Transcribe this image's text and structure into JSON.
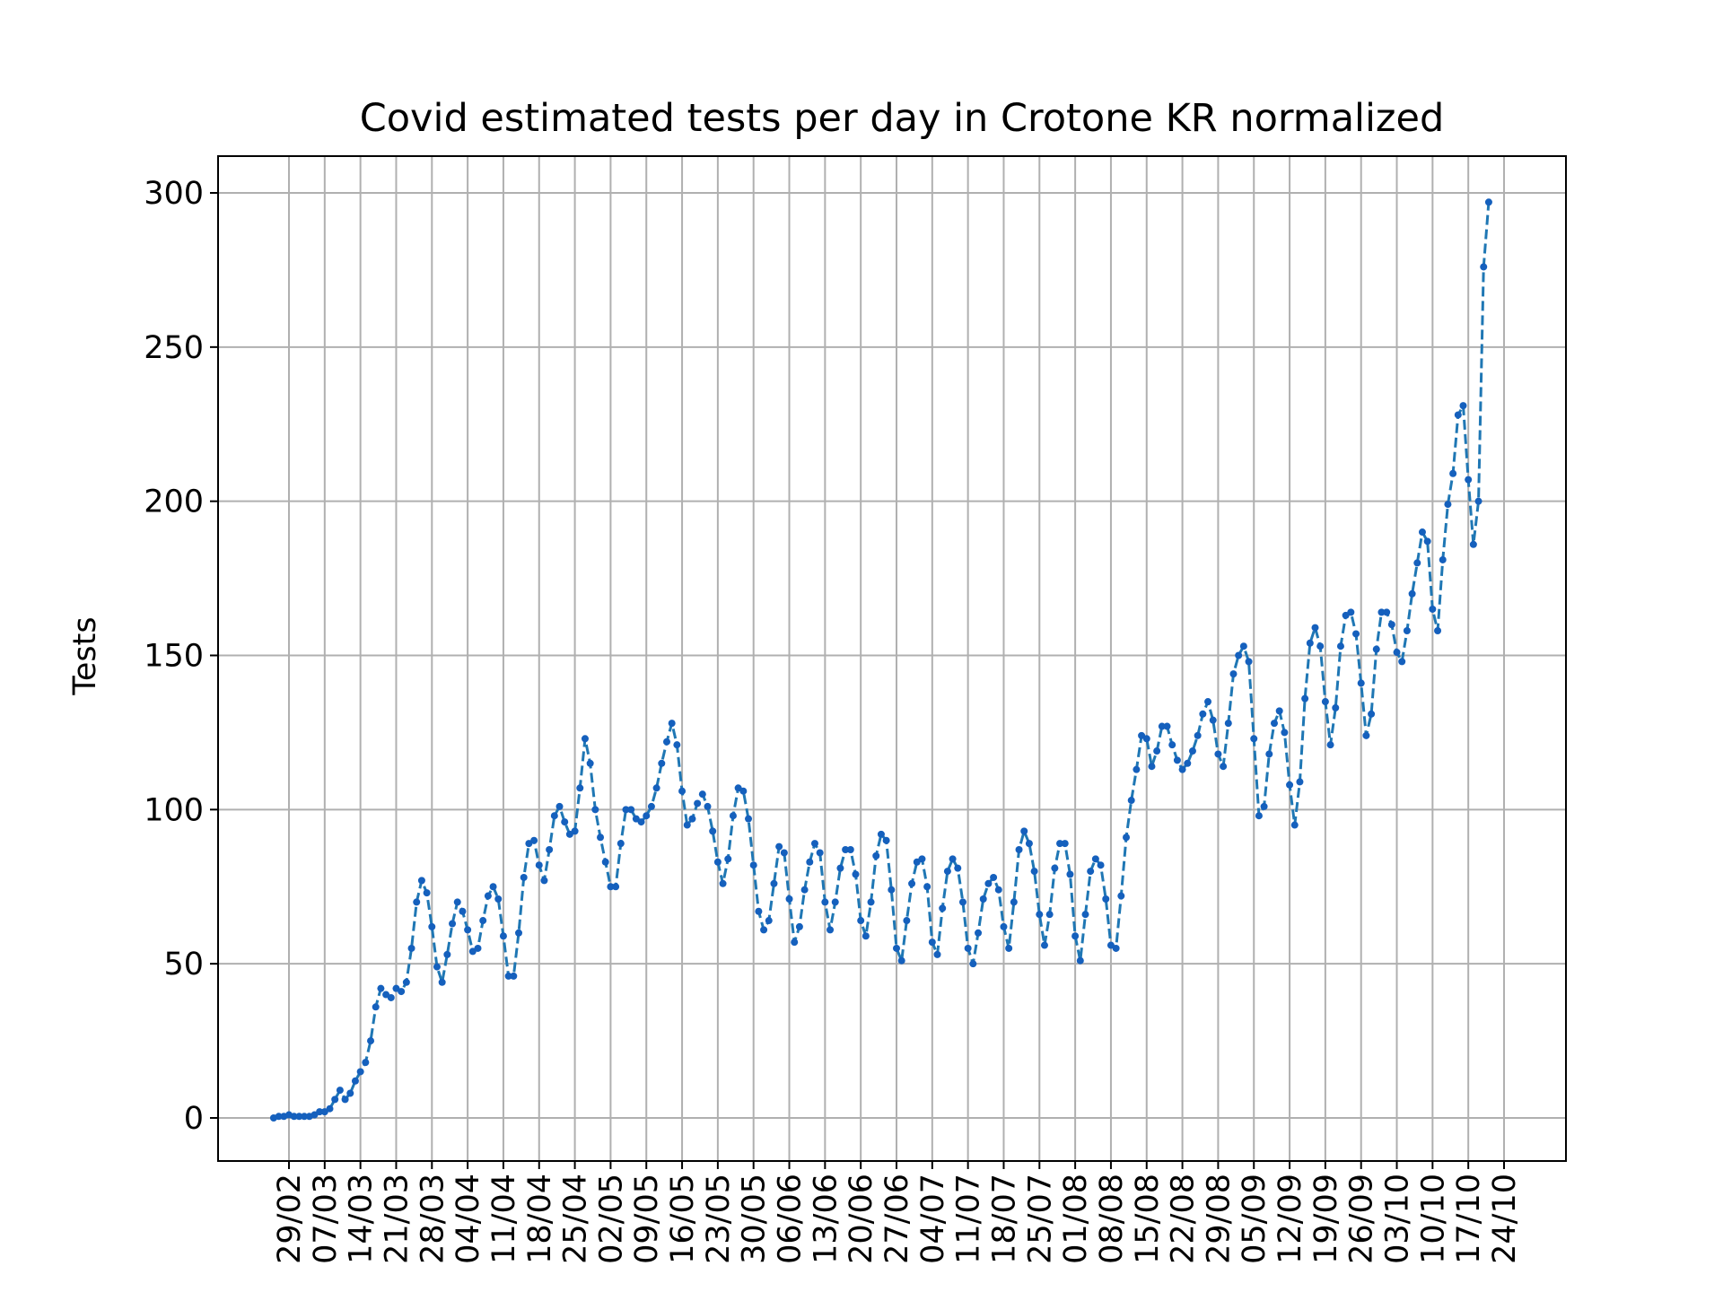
{
  "chart_data": {
    "type": "line",
    "title": "Covid estimated tests per day in Crotone KR normalized",
    "xlabel": "",
    "ylabel": "Tests",
    "ylim": [
      -14,
      312
    ],
    "yticks": [
      0,
      50,
      100,
      150,
      200,
      250,
      300
    ],
    "grid": true,
    "legend": "none",
    "line_style": "dashed",
    "marker": "dot",
    "colors": {
      "line": "#1f77b4",
      "marker": "#1560bd",
      "grid": "#b0b0b0",
      "axes": "#000000"
    },
    "xticks": [
      {
        "day": 3,
        "label": "29/02"
      },
      {
        "day": 10,
        "label": "07/03"
      },
      {
        "day": 17,
        "label": "14/03"
      },
      {
        "day": 24,
        "label": "21/03"
      },
      {
        "day": 31,
        "label": "28/03"
      },
      {
        "day": 38,
        "label": "04/04"
      },
      {
        "day": 45,
        "label": "11/04"
      },
      {
        "day": 52,
        "label": "18/04"
      },
      {
        "day": 59,
        "label": "25/04"
      },
      {
        "day": 66,
        "label": "02/05"
      },
      {
        "day": 73,
        "label": "09/05"
      },
      {
        "day": 80,
        "label": "16/05"
      },
      {
        "day": 87,
        "label": "23/05"
      },
      {
        "day": 94,
        "label": "30/05"
      },
      {
        "day": 101,
        "label": "06/06"
      },
      {
        "day": 108,
        "label": "13/06"
      },
      {
        "day": 115,
        "label": "20/06"
      },
      {
        "day": 122,
        "label": "27/06"
      },
      {
        "day": 129,
        "label": "04/07"
      },
      {
        "day": 136,
        "label": "11/07"
      },
      {
        "day": 143,
        "label": "18/07"
      },
      {
        "day": 150,
        "label": "25/07"
      },
      {
        "day": 157,
        "label": "01/08"
      },
      {
        "day": 164,
        "label": "08/08"
      },
      {
        "day": 171,
        "label": "15/08"
      },
      {
        "day": 178,
        "label": "22/08"
      },
      {
        "day": 185,
        "label": "29/08"
      },
      {
        "day": 192,
        "label": "05/09"
      },
      {
        "day": 199,
        "label": "12/09"
      },
      {
        "day": 206,
        "label": "19/09"
      },
      {
        "day": 213,
        "label": "26/09"
      },
      {
        "day": 220,
        "label": "03/10"
      },
      {
        "day": 227,
        "label": "10/10"
      },
      {
        "day": 234,
        "label": "17/10"
      },
      {
        "day": 241,
        "label": "24/10"
      }
    ],
    "values": [
      0,
      0.5,
      0.5,
      1,
      0.5,
      0.5,
      0.5,
      0.5,
      1,
      2,
      2,
      3,
      6,
      9,
      6,
      8,
      12,
      15,
      18,
      25,
      36,
      42,
      40,
      39,
      42,
      41,
      44,
      55,
      70,
      77,
      73,
      62,
      49,
      44,
      53,
      63,
      70,
      67,
      61,
      54,
      55,
      64,
      72,
      75,
      71,
      59,
      46,
      46,
      60,
      78,
      89,
      90,
      82,
      77,
      87,
      98,
      101,
      96,
      92,
      93,
      107,
      123,
      115,
      100,
      91,
      83,
      75,
      75,
      89,
      100,
      100,
      97,
      96,
      98,
      101,
      107,
      115,
      122,
      128,
      121,
      106,
      95,
      97,
      102,
      105,
      101,
      93,
      83,
      76,
      84,
      98,
      107,
      106,
      97,
      82,
      67,
      61,
      64,
      76,
      88,
      86,
      71,
      57,
      62,
      74,
      83,
      89,
      86,
      70,
      61,
      70,
      81,
      87,
      87,
      79,
      64,
      59,
      70,
      85,
      92,
      90,
      74,
      55,
      51,
      64,
      76,
      83,
      84,
      75,
      57,
      53,
      68,
      80,
      84,
      81,
      70,
      55,
      50,
      60,
      71,
      76,
      78,
      74,
      62,
      55,
      70,
      87,
      93,
      89,
      80,
      66,
      56,
      66,
      81,
      89,
      89,
      79,
      59,
      51,
      66,
      80,
      84,
      82,
      71,
      56,
      55,
      72,
      91,
      103,
      113,
      124,
      123,
      114,
      119,
      127,
      127,
      121,
      116,
      113,
      115,
      119,
      124,
      131,
      135,
      129,
      118,
      114,
      128,
      144,
      150,
      153,
      148,
      123,
      98,
      101,
      118,
      128,
      132,
      125,
      108,
      95,
      109,
      136,
      154,
      159,
      153,
      135,
      121,
      133,
      153,
      163,
      164,
      157,
      141,
      124,
      131,
      152,
      164,
      164,
      160,
      151,
      148,
      158,
      170,
      180,
      190,
      187,
      165,
      158,
      181,
      199,
      209,
      228,
      231,
      207,
      186,
      200,
      276,
      297
    ]
  }
}
